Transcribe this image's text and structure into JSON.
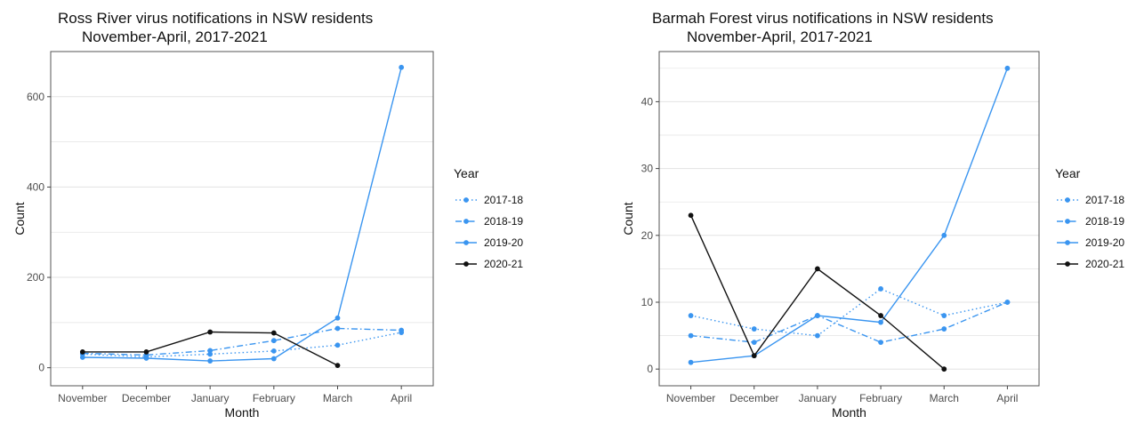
{
  "colors": {
    "blue": "#3a95f0",
    "black": "#111111",
    "grid": "#e3e3e3",
    "axis": "#444444",
    "panel_border": "#555555"
  },
  "chart_data": [
    {
      "type": "line",
      "title": "Ross River virus notifications in NSW residents",
      "subtitle": "November-April, 2017-2021",
      "xlabel": "Month",
      "ylabel": "Count",
      "categories": [
        "November",
        "December",
        "January",
        "February",
        "March",
        "April"
      ],
      "ylim": [
        -40,
        700
      ],
      "yticks": [
        0,
        200,
        400,
        600
      ],
      "grid": true,
      "legend": {
        "title": "Year",
        "position": "right"
      },
      "series": [
        {
          "name": "2017-18",
          "values": [
            30,
            24,
            30,
            37,
            50,
            78
          ],
          "color": "#3a95f0",
          "dash": "dotted"
        },
        {
          "name": "2018-19",
          "values": [
            32,
            28,
            38,
            60,
            87,
            83
          ],
          "color": "#3a95f0",
          "dash": "dashdot"
        },
        {
          "name": "2019-20",
          "values": [
            23,
            21,
            15,
            20,
            110,
            665
          ],
          "color": "#3a95f0",
          "dash": "solid"
        },
        {
          "name": "2020-21",
          "values": [
            35,
            35,
            79,
            77,
            5,
            null
          ],
          "color": "#111111",
          "dash": "solid"
        }
      ]
    },
    {
      "type": "line",
      "title": "Barmah Forest virus notifications in NSW residents",
      "subtitle": "November-April, 2017-2021",
      "xlabel": "Month",
      "ylabel": "Count",
      "categories": [
        "November",
        "December",
        "January",
        "February",
        "March",
        "April"
      ],
      "ylim": [
        -2.5,
        47.5
      ],
      "yticks": [
        0,
        10,
        20,
        30,
        40
      ],
      "grid": true,
      "legend": {
        "title": "Year",
        "position": "right"
      },
      "series": [
        {
          "name": "2017-18",
          "values": [
            8,
            6,
            5,
            12,
            8,
            10
          ],
          "color": "#3a95f0",
          "dash": "dotted"
        },
        {
          "name": "2018-19",
          "values": [
            5,
            4,
            8,
            4,
            6,
            10
          ],
          "color": "#3a95f0",
          "dash": "dashdot"
        },
        {
          "name": "2019-20",
          "values": [
            1,
            2,
            8,
            7,
            20,
            45
          ],
          "color": "#3a95f0",
          "dash": "solid"
        },
        {
          "name": "2020-21",
          "values": [
            23,
            2,
            15,
            8,
            0,
            null
          ],
          "color": "#111111",
          "dash": "solid"
        }
      ]
    }
  ]
}
